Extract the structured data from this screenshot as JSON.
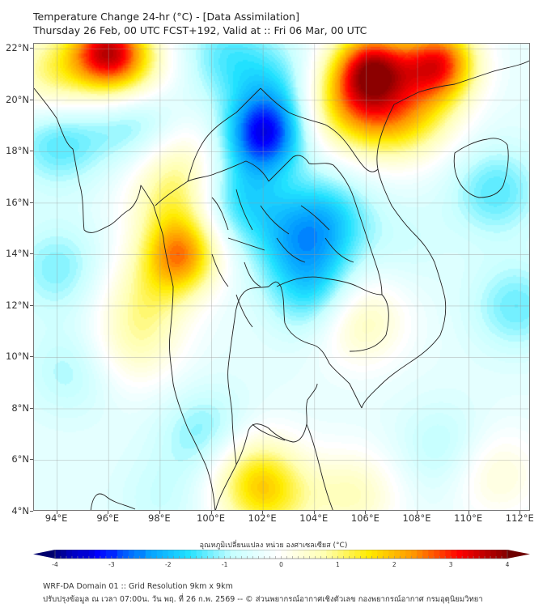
{
  "header": {
    "title_line1": "Temperature Change 24-hr (°C) - [Data Assimilation]",
    "title_line2": "Thursday 26 Feb, 00 UTC FCST+192, Valid at :: Fri 06 Mar, 00 UTC"
  },
  "map": {
    "lat_range": [
      4,
      22.2
    ],
    "lon_range": [
      93.1,
      112.4
    ],
    "lat_labels": [
      "22°N",
      "20°N",
      "18°N",
      "16°N",
      "14°N",
      "12°N",
      "10°N",
      "8°N",
      "6°N",
      "4°N"
    ],
    "lat_values": [
      22,
      20,
      18,
      16,
      14,
      12,
      10,
      8,
      6,
      4
    ],
    "lon_labels": [
      "94°E",
      "96°E",
      "98°E",
      "100°E",
      "102°E",
      "104°E",
      "106°E",
      "108°E",
      "110°E",
      "112°E"
    ],
    "lon_values": [
      94,
      96,
      98,
      100,
      102,
      104,
      106,
      108,
      110,
      112
    ],
    "field_centers": [
      {
        "lon": 95.9,
        "lat": 22.0,
        "value": 3.0
      },
      {
        "lon": 106.2,
        "lat": 21.4,
        "value": 3.1
      },
      {
        "lon": 108.8,
        "lat": 21.5,
        "value": 3.2
      },
      {
        "lon": 98.8,
        "lat": 14.0,
        "value": 2.4
      },
      {
        "lon": 96.8,
        "lat": 21.0,
        "value": 1.6
      },
      {
        "lon": 106.5,
        "lat": 19.5,
        "value": 1.6
      },
      {
        "lon": 105.0,
        "lat": 20.0,
        "value": 1.5
      },
      {
        "lon": 108.0,
        "lat": 19.5,
        "value": 1.2
      },
      {
        "lon": 93.8,
        "lat": 21.0,
        "value": 1.4
      },
      {
        "lon": 98.5,
        "lat": 16.0,
        "value": 1.2
      },
      {
        "lon": 97.5,
        "lat": 12.5,
        "value": 1.0
      },
      {
        "lon": 97.0,
        "lat": 10.5,
        "value": 0.9
      },
      {
        "lon": 101.5,
        "lat": 5.5,
        "value": 1.4
      },
      {
        "lon": 102.3,
        "lat": 4.5,
        "value": 1.2
      },
      {
        "lon": 105.7,
        "lat": 11.5,
        "value": 1.2
      },
      {
        "lon": 105.5,
        "lat": 4.7,
        "value": 1.0
      },
      {
        "lon": 111.0,
        "lat": 5.5,
        "value": 0.8
      },
      {
        "lon": 98.8,
        "lat": 17.7,
        "value": 0.8
      },
      {
        "lon": 102.0,
        "lat": 18.7,
        "value": -2.6
      },
      {
        "lon": 97.0,
        "lat": 19.5,
        "value": -1.3
      },
      {
        "lon": 94.0,
        "lat": 18.5,
        "value": -1.1
      },
      {
        "lon": 101.0,
        "lat": 16.2,
        "value": -1.3
      },
      {
        "lon": 103.3,
        "lat": 14.5,
        "value": -1.2
      },
      {
        "lon": 104.5,
        "lat": 15.5,
        "value": -1.1
      },
      {
        "lon": 104.0,
        "lat": 12.5,
        "value": -1.2
      },
      {
        "lon": 102.5,
        "lat": 20.5,
        "value": -1.0
      },
      {
        "lon": 100.5,
        "lat": 21.8,
        "value": -0.9
      },
      {
        "lon": 111.0,
        "lat": 16.5,
        "value": -1.0
      },
      {
        "lon": 111.8,
        "lat": 12.0,
        "value": -0.9
      },
      {
        "lon": 94.0,
        "lat": 13.5,
        "value": -0.8
      },
      {
        "lon": 94.5,
        "lat": 9.5,
        "value": -0.6
      },
      {
        "lon": 99.8,
        "lat": 7.0,
        "value": -0.9
      },
      {
        "lon": 98.0,
        "lat": 4.5,
        "value": -0.4
      },
      {
        "lon": 109.0,
        "lat": 6.5,
        "value": -0.6
      },
      {
        "lon": 107.5,
        "lat": 14.5,
        "value": -0.3
      }
    ]
  },
  "colorbar": {
    "label": "อุณหภูมิเปลี่ยนแปลง หน่วย องศาเซลเซียส (°C)",
    "min": -4,
    "max": 4,
    "ticks": [
      "-4",
      "-3",
      "-2",
      "-1",
      "0",
      "1",
      "2",
      "3",
      "4"
    ],
    "tick_values": [
      -4,
      -3,
      -2,
      -1,
      0,
      1,
      2,
      3,
      4
    ],
    "colors": {
      "under": "#00006e",
      "over": "#6e0000",
      "stops": [
        "#00008c",
        "#0000ff",
        "#0096ff",
        "#21e1ff",
        "#c8ffff",
        "#ffffff",
        "#ffffb4",
        "#ffeb00",
        "#ff9600",
        "#ff0000",
        "#8c0000"
      ]
    }
  },
  "footer": {
    "line1": "WRF-DA Domain 01 :: Grid Resolution 9km x 9km",
    "line2": "ปรับปรุงข้อมูล ณ เวลา 07:00น. วัน พฤ. ที่ 26 ก.พ. 2569 -- © ส่วนพยากรณ์อากาศเชิงตัวเลข กองพยากรณ์อากาศ กรมอุตุนิยมวิทยา"
  }
}
